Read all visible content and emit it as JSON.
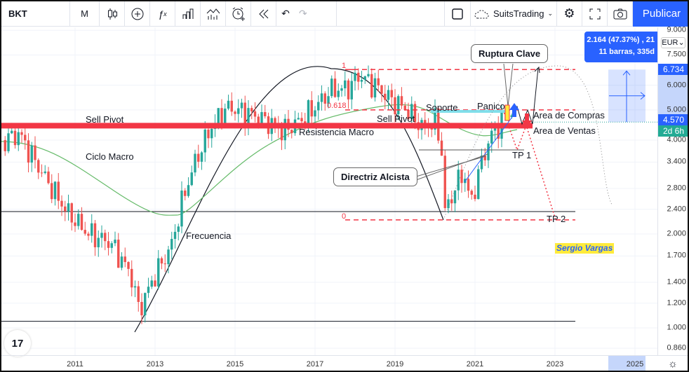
{
  "toolbar": {
    "symbol": "BKT",
    "interval": "M",
    "undo": "↶",
    "redo": "↷",
    "layout_name": "SuitsTrading",
    "publish": "Publicar"
  },
  "colors": {
    "up": "#26a69a",
    "down": "#ef5350",
    "accent": "#2962ff",
    "pivot": "#f23645",
    "ma": "#66bb6a",
    "support": "#80deea",
    "countdown": "#22ab94"
  },
  "axis": {
    "currency": "EUR",
    "price_badge": "6.734",
    "last_price": "4.570",
    "countdown": "2d 6h"
  },
  "measure": {
    "line1": "2.164 (47.37%) , 21",
    "line2": "11 barras, 335d"
  },
  "annotations": {
    "sell_pivot_left": "Sell Pivot",
    "sell_pivot_right": "Sell Pivot",
    "ciclo_macro": "Ciclo Macro",
    "frecuencia": "Frecuencia",
    "resistencia_macro": "Resistencia Macro",
    "soporte": "Soporte",
    "panico": "Panico",
    "area_compras": "Area de Compras",
    "area_ventas": "Area de Ventas",
    "tp1": "TP 1",
    "tp2": "TP 2",
    "author": "Sergio Vargas",
    "ruptura_clave": "Ruptura Clave",
    "directriz_alcista": "Directriz Alcista",
    "fib_1": "1",
    "fib_0618": "0.618",
    "fib_0": "0"
  },
  "chart_data": {
    "type": "candlestick",
    "title": "BKT",
    "interval": "monthly",
    "yscale": "log",
    "ylim": [
      0.84,
      9.6
    ],
    "y_ticks": [
      "9.000",
      "7.500",
      "6.000",
      "5.000",
      "4.000",
      "3.400",
      "2.800",
      "2.400",
      "2.000",
      "1.700",
      "1.400",
      "1.200",
      "1.000",
      "0.860"
    ],
    "x_ticks": [
      "2011",
      "2013",
      "2015",
      "2017",
      "2019",
      "2021",
      "2023",
      "2025"
    ],
    "close_path": [
      [
        2009.25,
        4.0
      ],
      [
        2009.6,
        4.2
      ],
      [
        2010.2,
        3.1
      ],
      [
        2010.8,
        2.36
      ],
      [
        2011.3,
        2.02
      ],
      [
        2011.9,
        1.87
      ],
      [
        2012.4,
        1.48
      ],
      [
        2012.6,
        1.14
      ],
      [
        2013.0,
        1.48
      ],
      [
        2013.4,
        1.82
      ],
      [
        2013.7,
        2.62
      ],
      [
        2014.0,
        3.4
      ],
      [
        2014.4,
        4.4
      ],
      [
        2014.8,
        5.1
      ],
      [
        2015.3,
        4.9
      ],
      [
        2015.8,
        4.6
      ],
      [
        2016.2,
        4.27
      ],
      [
        2016.6,
        4.6
      ],
      [
        2017.0,
        5.1
      ],
      [
        2017.4,
        5.8
      ],
      [
        2017.8,
        5.85
      ],
      [
        2018.1,
        6.45
      ],
      [
        2018.5,
        6.0
      ],
      [
        2018.9,
        5.4
      ],
      [
        2019.3,
        5.0
      ],
      [
        2019.7,
        4.38
      ],
      [
        2020.0,
        4.6
      ],
      [
        2020.15,
        3.96
      ],
      [
        2020.25,
        2.36
      ],
      [
        2020.4,
        2.62
      ],
      [
        2020.7,
        3.2
      ],
      [
        2020.9,
        2.5
      ],
      [
        2021.1,
        3.2
      ],
      [
        2021.4,
        4.16
      ],
      [
        2021.7,
        4.7
      ],
      [
        2021.9,
        5.0
      ],
      [
        2022.0,
        4.57
      ]
    ],
    "levels": {
      "sell_pivot": 4.45,
      "fib_1": 6.734,
      "fib_0618": 5.0,
      "fib_0": 2.22,
      "support": 4.9,
      "low_line": 2.36,
      "base_line": 1.05
    }
  }
}
